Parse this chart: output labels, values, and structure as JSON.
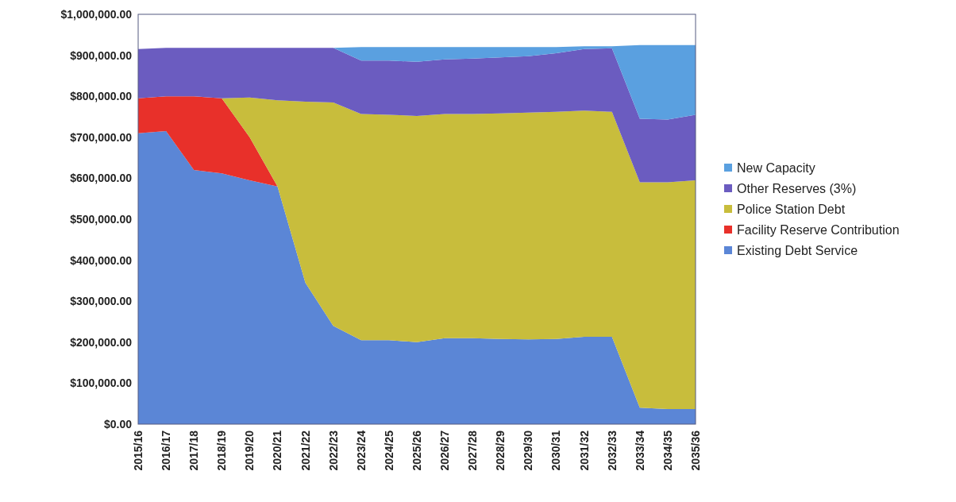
{
  "chart_data": {
    "type": "area",
    "stacked": true,
    "legend": "right",
    "grid": false,
    "categories": [
      "2015/16",
      "2016/17",
      "2017/18",
      "2018/19",
      "2019/20",
      "2020/21",
      "2021/22",
      "2022/23",
      "2023/24",
      "2024/25",
      "2025/26",
      "2026/27",
      "2027/28",
      "2028/29",
      "2029/30",
      "2030/31",
      "2031/32",
      "2032/33",
      "2033/34",
      "2034/35",
      "2035/36"
    ],
    "ylim": [
      0,
      1000000
    ],
    "yticks": [
      {
        "value": 0,
        "label": "$0.00"
      },
      {
        "value": 100000,
        "label": "$100,000.00"
      },
      {
        "value": 200000,
        "label": "$200,000.00"
      },
      {
        "value": 300000,
        "label": "$300,000.00"
      },
      {
        "value": 400000,
        "label": "$400,000.00"
      },
      {
        "value": 500000,
        "label": "$500,000.00"
      },
      {
        "value": 600000,
        "label": "$600,000.00"
      },
      {
        "value": 700000,
        "label": "$700,000.00"
      },
      {
        "value": 800000,
        "label": "$800,000.00"
      },
      {
        "value": 900000,
        "label": "$900,000.00"
      },
      {
        "value": 1000000,
        "label": "$1,000,000.00"
      }
    ],
    "series": [
      {
        "name": "Existing Debt Service",
        "color": "#5b86d6",
        "values": [
          710000,
          715000,
          620000,
          612000,
          595000,
          580000,
          345000,
          240000,
          205000,
          205000,
          200000,
          210000,
          210000,
          208000,
          207000,
          208000,
          213000,
          213000,
          40000,
          37000,
          37000
        ]
      },
      {
        "name": "Facility Reserve Contribution",
        "color": "#e8302a",
        "values": [
          85000,
          85000,
          180000,
          183000,
          105000,
          0,
          null,
          null,
          null,
          null,
          null,
          null,
          null,
          null,
          null,
          null,
          null,
          null,
          null,
          null,
          null
        ]
      },
      {
        "name": "Police Station Debt",
        "color": "#c8bd3c",
        "values": [
          null,
          null,
          null,
          0,
          97000,
          210000,
          442000,
          545000,
          552000,
          550000,
          552000,
          547000,
          547000,
          550000,
          553000,
          554000,
          552000,
          549000,
          550000,
          553000,
          558000
        ]
      },
      {
        "name": "Other Reserves (3%)",
        "color": "#6b5cc0",
        "values": [
          120000,
          118000,
          118000,
          123000,
          121000,
          128000,
          131000,
          133000,
          130000,
          132000,
          132000,
          133000,
          135000,
          137000,
          138000,
          143000,
          150000,
          155000,
          155000,
          153000,
          160000
        ]
      },
      {
        "name": "New Capacity",
        "color": "#5aa0e0",
        "values": [
          null,
          null,
          null,
          null,
          null,
          null,
          null,
          0,
          33000,
          33000,
          36000,
          30000,
          28000,
          25000,
          22000,
          15000,
          7000,
          5000,
          180000,
          182000,
          170000
        ]
      }
    ]
  }
}
